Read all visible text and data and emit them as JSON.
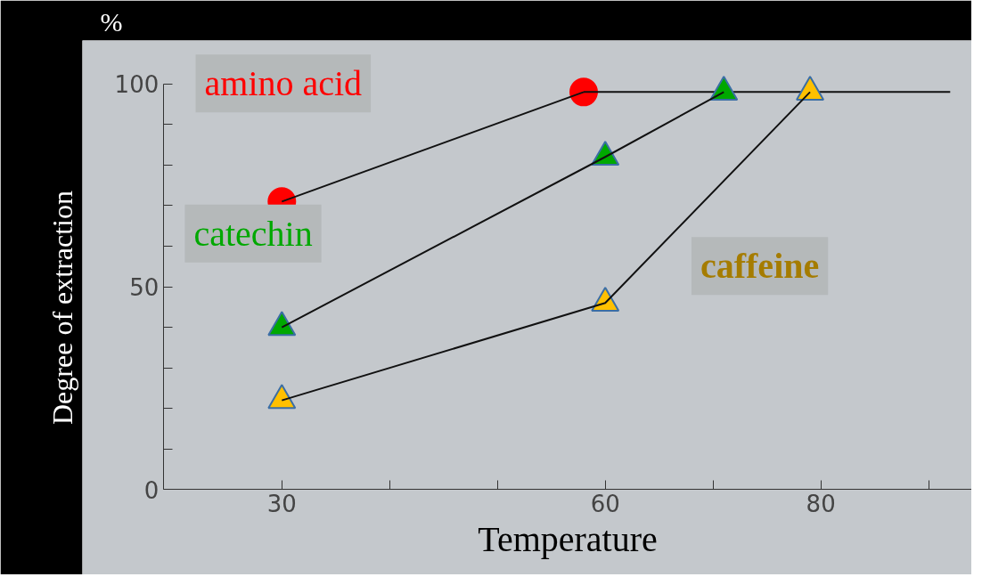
{
  "chart_data": {
    "type": "line",
    "title": "%",
    "xlabel": "Temperature",
    "ylabel": "Degree of extraction",
    "xlim": [
      19,
      94
    ],
    "ylim": [
      0,
      100
    ],
    "xticks": [
      30,
      {
        "value": 40,
        "label": null
      },
      {
        "value": 50,
        "label": null
      },
      60,
      {
        "value": 70,
        "label": null
      },
      80,
      {
        "value": 90,
        "label": null
      }
    ],
    "yticks": [
      0,
      {
        "value": 10,
        "label": null
      },
      {
        "value": 20,
        "label": null
      },
      {
        "value": 30,
        "label": null
      },
      {
        "value": 40,
        "label": null
      },
      50,
      {
        "value": 60,
        "label": null
      },
      {
        "value": 70,
        "label": null
      },
      {
        "value": 80,
        "label": null
      },
      {
        "value": 90,
        "label": null
      },
      100
    ],
    "grid": false,
    "series": [
      {
        "name": "amino acid",
        "color": "#111111",
        "colors": [
          "#ff0000",
          "#ff0000"
        ],
        "marker": "circle",
        "x": [
          30,
          58
        ],
        "values": [
          71,
          98
        ]
      },
      {
        "color": "#111111",
        "marker": "none",
        "x": [
          58,
          72,
          92
        ],
        "values": [
          98,
          98,
          98
        ]
      },
      {
        "name": "catechin",
        "color": "#111111",
        "colors": [
          "#00a800",
          "#00a800",
          "#00a800"
        ],
        "marker": "triangle",
        "x": [
          30,
          60,
          71
        ],
        "values": [
          40,
          82,
          98
        ]
      },
      {
        "name": "caffeine",
        "color": "#111111",
        "colors": [
          "#ffc000",
          "#ffc000",
          "#ffc000"
        ],
        "marker": "triangle",
        "x": [
          30,
          60,
          79
        ],
        "values": [
          22,
          46,
          98
        ]
      }
    ]
  }
}
